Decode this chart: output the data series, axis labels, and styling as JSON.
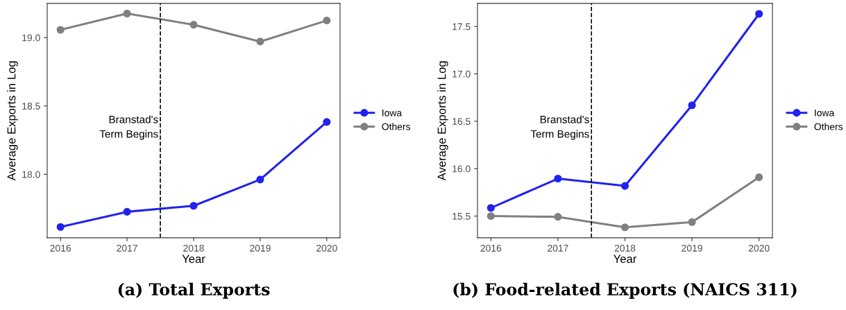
{
  "chart_data": [
    {
      "type": "line",
      "title": "(a) Total Exports",
      "xlabel": "Year",
      "ylabel": "Average Exports in Log",
      "x": [
        2016,
        2017,
        2018,
        2019,
        2020
      ],
      "xlim": [
        2015.8,
        2020.2
      ],
      "xticks": [
        2016,
        2017,
        2018,
        2019,
        2020
      ],
      "ylim": [
        17.536,
        19.25
      ],
      "yticks": [
        {
          "value": 18.0,
          "label": "18.0"
        },
        {
          "value": 18.5,
          "label": "18.5"
        },
        {
          "value": 19.0,
          "label": "19.0"
        }
      ],
      "series": [
        {
          "name": "Iowa",
          "color": "#2222ee",
          "values": [
            17.615,
            17.726,
            17.77,
            17.962,
            18.383
          ]
        },
        {
          "name": "Others",
          "color": "#808080",
          "values": [
            19.057,
            19.176,
            19.094,
            18.971,
            19.125
          ]
        }
      ],
      "ref_lines": [
        {
          "axis": "x",
          "value": 2017.5,
          "label": "Branstad's\nTerm Begins",
          "color": "#000000",
          "line_style": "dashed"
        }
      ],
      "marker": "circle",
      "line_style": "solid",
      "legend": "right",
      "grid": false
    },
    {
      "type": "line",
      "title": "(b) Food-related Exports (NAICS 311)",
      "xlabel": "Year",
      "ylabel": "Average Exports in Log",
      "x": [
        2016,
        2017,
        2018,
        2019,
        2020
      ],
      "xlim": [
        2015.8,
        2020.2
      ],
      "xticks": [
        2016,
        2017,
        2018,
        2019,
        2020
      ],
      "ylim": [
        15.271,
        17.743
      ],
      "yticks": [
        {
          "value": 15.5,
          "label": "15.5"
        },
        {
          "value": 16.0,
          "label": "16.0"
        },
        {
          "value": 16.5,
          "label": "16.5"
        },
        {
          "value": 17.0,
          "label": "17.0"
        },
        {
          "value": 17.5,
          "label": "17.5"
        }
      ],
      "series": [
        {
          "name": "Iowa",
          "color": "#2222ee",
          "values": [
            15.586,
            15.895,
            15.818,
            16.669,
            17.633
          ]
        },
        {
          "name": "Others",
          "color": "#808080",
          "values": [
            15.5,
            15.492,
            15.381,
            15.436,
            15.909
          ]
        }
      ],
      "ref_lines": [
        {
          "axis": "x",
          "value": 2017.5,
          "label": "Branstad's\nTerm Begins",
          "color": "#000000",
          "line_style": "dashed"
        }
      ],
      "marker": "circle",
      "line_style": "solid",
      "legend": "right",
      "grid": false
    }
  ]
}
